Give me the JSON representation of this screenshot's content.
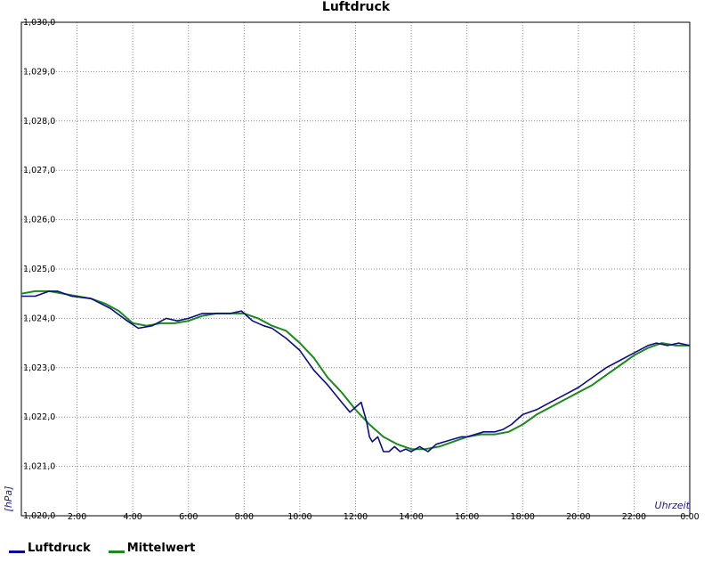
{
  "chart_data": {
    "type": "line",
    "title": "Luftdruck",
    "xlabel": "Uhrzeit",
    "ylabel": "[hPa]",
    "xlim": [
      0,
      24
    ],
    "ylim": [
      1020.0,
      1030.0
    ],
    "grid": true,
    "legend_position": "bottom-left",
    "y_ticks": [
      "1,020,0",
      "1,021,0",
      "1,022,0",
      "1,023,0",
      "1,024,0",
      "1,025,0",
      "1,026,0",
      "1,027,0",
      "1,028,0",
      "1,029,0",
      "1,030,0"
    ],
    "x_ticks": [
      "2:00",
      "4:00",
      "6:00",
      "8:00",
      "10:00",
      "12:00",
      "14:00",
      "16:00",
      "18:00",
      "20:00",
      "22:00",
      "0:00"
    ],
    "series": [
      {
        "name": "Luftdruck",
        "color": "#0b0b8c",
        "x": [
          0,
          0.5,
          1.0,
          1.3,
          1.8,
          2.5,
          3.2,
          3.8,
          4.2,
          4.7,
          5.2,
          5.6,
          6.0,
          6.5,
          7.0,
          7.5,
          7.9,
          8.3,
          8.7,
          9.0,
          9.5,
          10.0,
          10.5,
          11.0,
          11.5,
          11.8,
          12.0,
          12.2,
          12.4,
          12.5,
          12.6,
          12.8,
          13.0,
          13.2,
          13.4,
          13.6,
          13.8,
          14.0,
          14.3,
          14.6,
          14.9,
          15.2,
          15.5,
          15.8,
          16.0,
          16.3,
          16.6,
          17.0,
          17.3,
          17.6,
          18.0,
          18.5,
          19.0,
          19.5,
          20.0,
          20.5,
          21.0,
          21.5,
          22.0,
          22.5,
          22.8,
          23.2,
          23.6,
          24.0
        ],
        "y": [
          1024.45,
          1024.45,
          1024.55,
          1024.55,
          1024.45,
          1024.4,
          1024.2,
          1023.95,
          1023.8,
          1023.85,
          1024.0,
          1023.95,
          1024.0,
          1024.1,
          1024.1,
          1024.1,
          1024.15,
          1023.95,
          1023.85,
          1023.8,
          1023.6,
          1023.35,
          1022.95,
          1022.65,
          1022.3,
          1022.1,
          1022.2,
          1022.3,
          1021.9,
          1021.6,
          1021.5,
          1021.6,
          1021.3,
          1021.3,
          1021.4,
          1021.3,
          1021.35,
          1021.3,
          1021.4,
          1021.3,
          1021.45,
          1021.5,
          1021.55,
          1021.6,
          1021.6,
          1021.65,
          1021.7,
          1021.7,
          1021.75,
          1021.85,
          1022.05,
          1022.15,
          1022.3,
          1022.45,
          1022.6,
          1022.8,
          1023.0,
          1023.15,
          1023.3,
          1023.45,
          1023.5,
          1023.45,
          1023.5,
          1023.45
        ]
      },
      {
        "name": "Mittelwert",
        "color": "#1a8a1a",
        "x": [
          0,
          0.5,
          1.0,
          1.5,
          2.0,
          2.5,
          3.0,
          3.5,
          4.0,
          4.5,
          5.0,
          5.5,
          6.0,
          6.5,
          7.0,
          7.5,
          8.0,
          8.5,
          9.0,
          9.5,
          10.0,
          10.5,
          11.0,
          11.5,
          12.0,
          12.5,
          13.0,
          13.5,
          14.0,
          14.5,
          15.0,
          15.5,
          16.0,
          16.5,
          17.0,
          17.5,
          18.0,
          18.5,
          19.0,
          19.5,
          20.0,
          20.5,
          21.0,
          21.5,
          22.0,
          22.5,
          23.0,
          23.5,
          24.0
        ],
        "y": [
          1024.5,
          1024.55,
          1024.55,
          1024.5,
          1024.45,
          1024.4,
          1024.3,
          1024.15,
          1023.9,
          1023.85,
          1023.9,
          1023.9,
          1023.95,
          1024.05,
          1024.1,
          1024.1,
          1024.1,
          1024.0,
          1023.85,
          1023.75,
          1023.5,
          1023.2,
          1022.8,
          1022.5,
          1022.15,
          1021.85,
          1021.6,
          1021.45,
          1021.35,
          1021.35,
          1021.4,
          1021.5,
          1021.6,
          1021.65,
          1021.65,
          1021.7,
          1021.85,
          1022.05,
          1022.2,
          1022.35,
          1022.5,
          1022.65,
          1022.85,
          1023.05,
          1023.25,
          1023.4,
          1023.5,
          1023.45,
          1023.45
        ]
      }
    ]
  }
}
